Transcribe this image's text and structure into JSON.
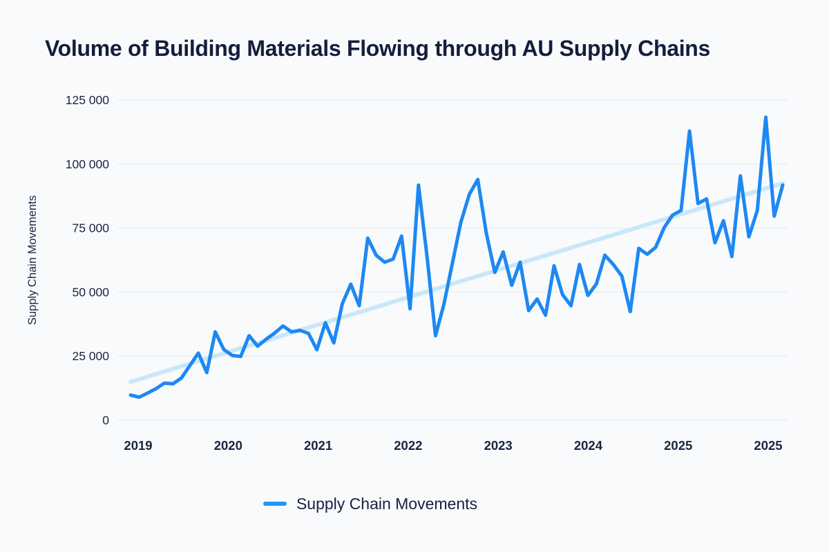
{
  "page": {
    "background_color": "#F8FAFC",
    "text_color": "#1B2442",
    "grid_color": "#E3E8EF"
  },
  "chart": {
    "title": "Volume of Building Materials Flowing through AU Supply Chains",
    "y_axis_label": "Supply Chain Movements",
    "legend": [
      {
        "label": "Supply Chain Movements",
        "color": "#2196F3"
      }
    ]
  },
  "chart_data": {
    "type": "line",
    "title": "Volume of Building Materials Flowing through AU Supply Chains",
    "xlabel": "",
    "ylabel": "Supply Chain Movements",
    "ylim": [
      0,
      125000
    ],
    "grid": "horizontal",
    "legend_position": "bottom",
    "y_ticks": [
      {
        "value": 125000,
        "label": "125 000"
      },
      {
        "value": 100000,
        "label": "100 000"
      },
      {
        "value": 75000,
        "label": "75 000"
      },
      {
        "value": 50000,
        "label": "50 000"
      },
      {
        "value": 25000,
        "label": "25 000"
      },
      {
        "value": 0,
        "label": "0"
      }
    ],
    "x_ticks": [
      "2019",
      "2020",
      "2021",
      "2022",
      "2023",
      "2024",
      "2025",
      "2025"
    ],
    "series": [
      {
        "name": "Supply Chain Movements",
        "color": "#1E88F2",
        "values": [
          9800,
          9000,
          10600,
          12300,
          14500,
          14200,
          16500,
          21300,
          26200,
          18600,
          34500,
          27600,
          25300,
          24900,
          33000,
          28900,
          31600,
          34000,
          36800,
          34500,
          35100,
          33900,
          27500,
          38000,
          30200,
          45500,
          53100,
          44700,
          71100,
          64400,
          61700,
          62900,
          71900,
          43500,
          91800,
          64000,
          33000,
          45300,
          61400,
          77300,
          88200,
          94000,
          73100,
          57700,
          65700,
          52700,
          61700,
          42800,
          47300,
          41000,
          60300,
          49100,
          44700,
          60800,
          48700,
          53200,
          64400,
          60800,
          56300,
          42400,
          67100,
          64800,
          67500,
          75200,
          80100,
          81900,
          112900,
          84600,
          86400,
          69300,
          77900,
          63900,
          95400,
          71600,
          81900,
          118300,
          79700,
          91800
        ]
      },
      {
        "name": "Trend",
        "color": "#C9E7F9",
        "style": "trend",
        "values": [
          15000,
          92500
        ]
      }
    ]
  }
}
